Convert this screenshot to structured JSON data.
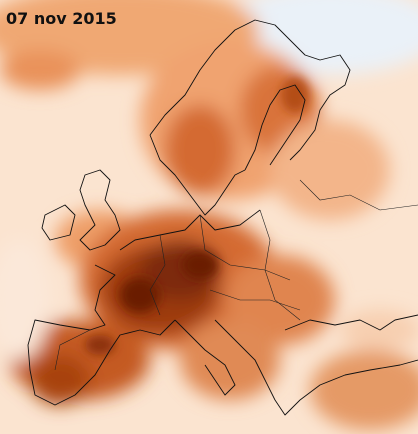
{
  "map": {
    "date": "07 nov 2015"
  }
}
